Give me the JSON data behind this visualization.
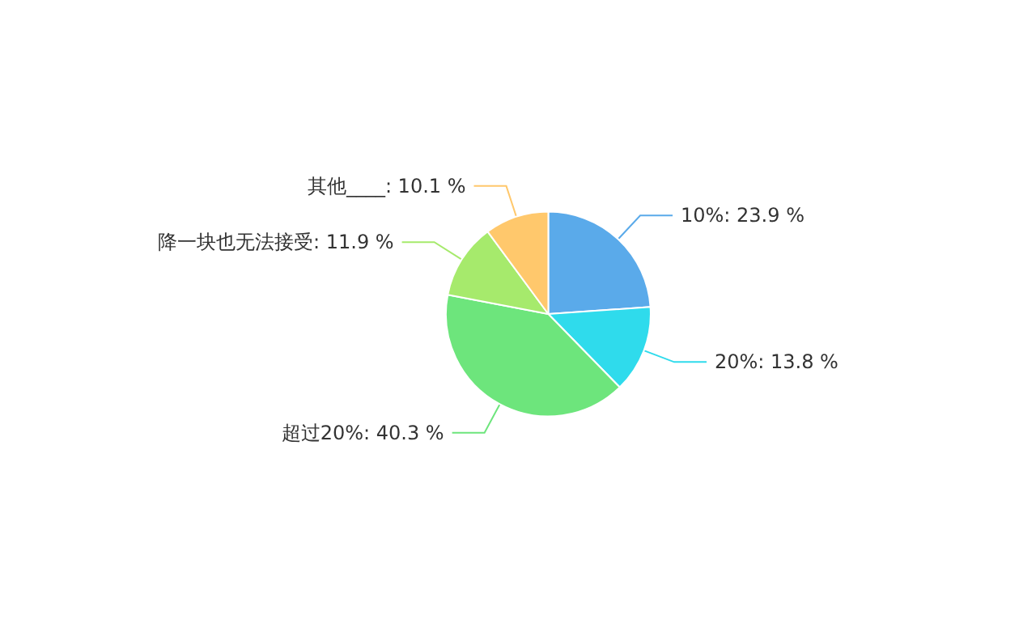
{
  "chart_data": {
    "type": "pie",
    "categories": [
      "10%",
      "20%",
      "超过20%",
      "降一块也无法接受",
      "其他____"
    ],
    "values": [
      23.9,
      13.8,
      40.3,
      11.9,
      10.1
    ],
    "value_labels": [
      "23.9 %",
      "13.8 %",
      "40.3 %",
      "11.9 %",
      "10.1 %"
    ],
    "colors": [
      "#5aaaea",
      "#2fdbec",
      "#6de57c",
      "#a6ea6c",
      "#ffc86c"
    ],
    "legend": false
  }
}
